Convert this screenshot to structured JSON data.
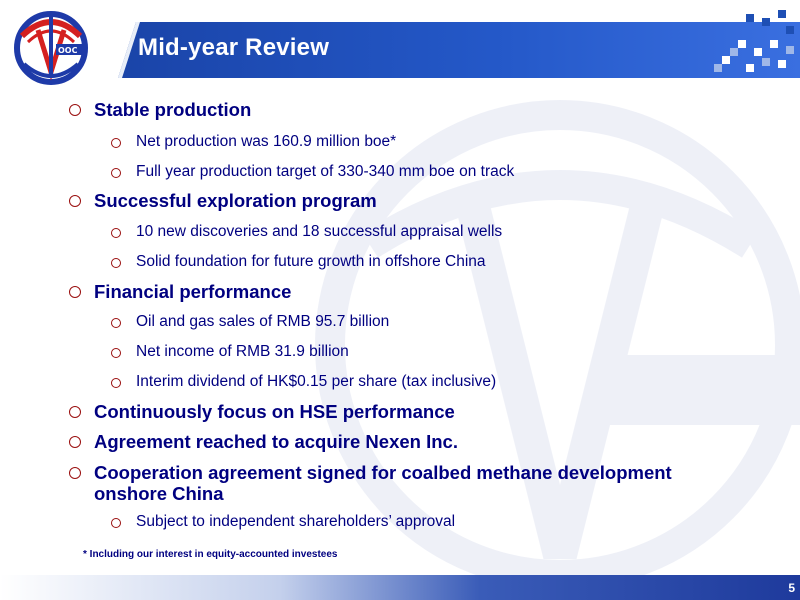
{
  "header": {
    "title": "Mid-year Review",
    "logo_icon": "cnooc-logo-icon",
    "title_bar_color": "#1e4fb4"
  },
  "bullets": [
    {
      "level": 1,
      "text": "Stable production"
    },
    {
      "level": 2,
      "text": "Net production was 160.9 million boe*"
    },
    {
      "level": 2,
      "text": "Full year production target of 330-340 mm boe on track"
    },
    {
      "level": 1,
      "text": "Successful exploration program"
    },
    {
      "level": 2,
      "text": "10 new discoveries and 18 successful appraisal wells"
    },
    {
      "level": 2,
      "text": "Solid foundation for future growth in offshore China"
    },
    {
      "level": 1,
      "text": "Financial performance"
    },
    {
      "level": 2,
      "text": "Oil and gas sales of RMB 95.7 billion"
    },
    {
      "level": 2,
      "text": "Net income of RMB 31.9 billion"
    },
    {
      "level": 2,
      "text": "Interim dividend of HK$0.15 per share (tax inclusive)"
    },
    {
      "level": 1,
      "text": "Continuously focus on HSE performance"
    },
    {
      "level": 1,
      "text": "Agreement reached to acquire Nexen Inc."
    },
    {
      "level": 1,
      "text": "Cooperation agreement signed for coalbed methane development"
    },
    {
      "level": 1,
      "text": "onshore China",
      "continuation": true
    },
    {
      "level": 2,
      "text": "Subject to independent shareholders’ approval"
    }
  ],
  "footnote": "* Including our interest in equity-accounted investees",
  "page_number": "5",
  "colors": {
    "text": "#000080",
    "bullet_ring": "#9a1010",
    "footer": "#1e3a9c"
  }
}
